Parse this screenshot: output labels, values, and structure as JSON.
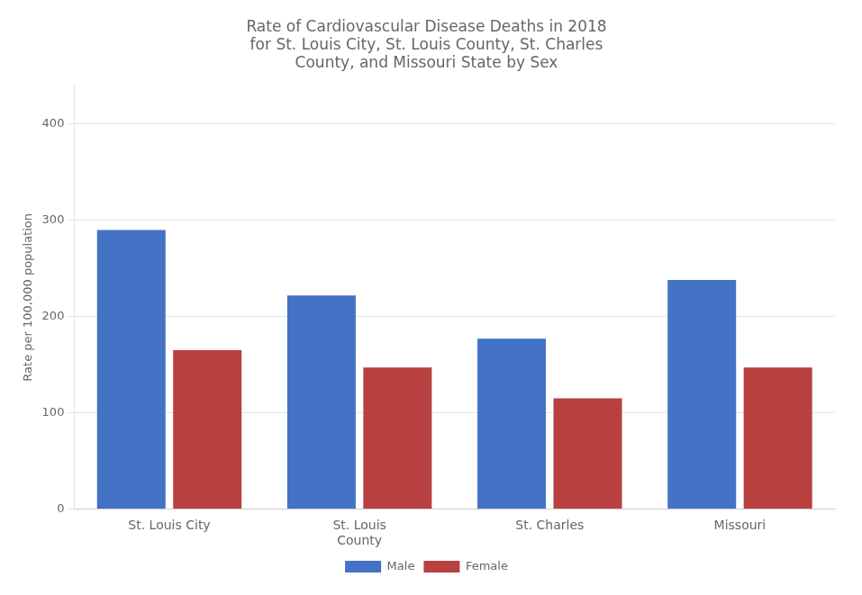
{
  "chart_data": {
    "type": "bar",
    "title": "Rate of Cardiovascular Disease Deaths in 2018\nfor St. Louis City, St. Louis County, St. Charles\nCounty, and Missouri State by Sex",
    "categories": [
      "St. Louis City",
      "St. Louis\nCounty",
      "St. Charles",
      "Missouri"
    ],
    "series": [
      {
        "name": "Male",
        "color": "#4472C4",
        "values": [
          290,
          222,
          177,
          238
        ]
      },
      {
        "name": "Female",
        "color": "#B94040",
        "values": [
          165,
          147,
          115,
          147
        ]
      }
    ],
    "ylabel": "Rate per 100,000 population",
    "ylim": [
      0,
      440
    ],
    "yticks": [
      0,
      100,
      200,
      300,
      400
    ],
    "grid": true,
    "legend": "bottom"
  }
}
